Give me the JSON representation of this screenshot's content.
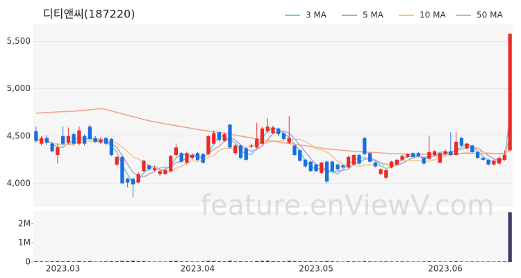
{
  "watermark": "feature.enViewV.com",
  "chart_data": [
    {
      "type": "candlestick",
      "title": "디티앤씨(187220)",
      "up_color": "#ec2a2a",
      "down_color": "#1a6fe0",
      "grid": true,
      "legend": "top-right",
      "open": [
        4550,
        4420,
        4480,
        4420,
        4300,
        4500,
        4430,
        4520,
        4420,
        4500,
        4600,
        4480,
        4430,
        4480,
        4470,
        4200,
        4280,
        4050,
        4050,
        4010,
        4130,
        4190,
        4140,
        4100,
        4100,
        4130,
        4300,
        4320,
        4220,
        4270,
        4320,
        4310,
        4310,
        4420,
        4540,
        4450,
        4620,
        4320,
        4400,
        4370,
        4390,
        4380,
        4420,
        4550,
        4530,
        4580,
        4530,
        4430,
        4400,
        4350,
        4250,
        4230,
        4200,
        4110,
        4230,
        4230,
        4200,
        4190,
        4170,
        4200,
        4300,
        4480,
        4320,
        4220,
        4100,
        4060,
        4170,
        4200,
        4250,
        4280,
        4320,
        4320,
        4270,
        4260,
        4300,
        4220,
        4310,
        4340,
        4300,
        4480,
        4370,
        4400,
        4330,
        4270,
        4250,
        4200,
        4210,
        4250,
        4350
      ],
      "high": [
        4600,
        4500,
        4510,
        4440,
        4420,
        4600,
        4590,
        4540,
        4600,
        4520,
        4620,
        4500,
        4490,
        4490,
        4480,
        4290,
        4300,
        4060,
        4060,
        4120,
        4250,
        4200,
        4180,
        4150,
        4160,
        4300,
        4420,
        4330,
        4330,
        4320,
        4330,
        4320,
        4510,
        4560,
        4550,
        4540,
        4630,
        4420,
        4410,
        4380,
        4420,
        4640,
        4600,
        4690,
        4610,
        4590,
        4540,
        4710,
        4410,
        4360,
        4260,
        4240,
        4210,
        4230,
        4240,
        4240,
        4210,
        4200,
        4290,
        4310,
        4310,
        4490,
        4330,
        4230,
        4160,
        4150,
        4240,
        4260,
        4300,
        4320,
        4330,
        4330,
        4280,
        4500,
        4350,
        4330,
        4360,
        4540,
        4540,
        4490,
        4430,
        4410,
        4340,
        4280,
        4260,
        4250,
        4280,
        4350,
        5580
      ],
      "low": [
        4430,
        4400,
        4410,
        4330,
        4210,
        4400,
        4410,
        4400,
        4400,
        4400,
        4450,
        4430,
        4420,
        4400,
        4290,
        4180,
        4000,
        3960,
        3850,
        4000,
        4120,
        4130,
        4130,
        4080,
        4090,
        4120,
        4280,
        4220,
        4200,
        4250,
        4240,
        4210,
        4300,
        4410,
        4440,
        4440,
        4370,
        4300,
        4260,
        4240,
        4370,
        4370,
        4410,
        4540,
        4520,
        4500,
        4460,
        4420,
        4290,
        4230,
        4170,
        4120,
        4120,
        4100,
        4000,
        4120,
        4140,
        4160,
        4160,
        4190,
        4200,
        4300,
        4220,
        4170,
        4090,
        4050,
        4160,
        4190,
        4240,
        4270,
        4270,
        4280,
        4200,
        4250,
        4290,
        4210,
        4300,
        4290,
        4290,
        4390,
        4360,
        4320,
        4260,
        4240,
        4190,
        4190,
        4200,
        4240,
        4340
      ],
      "close": [
        4450,
        4480,
        4430,
        4340,
        4380,
        4420,
        4500,
        4420,
        4560,
        4420,
        4470,
        4440,
        4460,
        4420,
        4300,
        4280,
        4000,
        4010,
        3990,
        4100,
        4240,
        4150,
        4160,
        4130,
        4140,
        4290,
        4380,
        4230,
        4320,
        4300,
        4250,
        4220,
        4500,
        4530,
        4460,
        4520,
        4380,
        4400,
        4270,
        4250,
        4400,
        4470,
        4580,
        4600,
        4590,
        4520,
        4470,
        4480,
        4300,
        4240,
        4180,
        4130,
        4130,
        4220,
        4020,
        4130,
        4150,
        4170,
        4280,
        4300,
        4210,
        4310,
        4230,
        4180,
        4150,
        4140,
        4230,
        4250,
        4290,
        4310,
        4280,
        4290,
        4210,
        4330,
        4340,
        4320,
        4340,
        4300,
        4440,
        4400,
        4420,
        4330,
        4270,
        4250,
        4200,
        4240,
        4270,
        4300,
        5580
      ],
      "series": [
        {
          "name": "3 MA",
          "color": "#6fd0d4",
          "values": [
            4450,
            4465,
            4453,
            4417,
            4383,
            4380,
            4433,
            4447,
            4493,
            4467,
            4483,
            4443,
            4457,
            4440,
            4393,
            4333,
            4193,
            4097,
            4000,
            4033,
            4110,
            4163,
            4183,
            4147,
            4143,
            4187,
            4270,
            4300,
            4310,
            4283,
            4290,
            4257,
            4323,
            4417,
            4497,
            4503,
            4453,
            4433,
            4350,
            4307,
            4307,
            4373,
            4483,
            4550,
            4590,
            4570,
            4527,
            4490,
            4417,
            4340,
            4240,
            4183,
            4147,
            4160,
            4123,
            4123,
            4100,
            4150,
            4200,
            4250,
            4263,
            4273,
            4250,
            4240,
            4187,
            4157,
            4173,
            4207,
            4257,
            4283,
            4293,
            4293,
            4260,
            4277,
            4293,
            4330,
            4333,
            4320,
            4360,
            4380,
            4420,
            4383,
            4340,
            4283,
            4240,
            4230,
            4237,
            4270,
            4717
          ]
        },
        {
          "name": "5 MA",
          "color": "#b9a3d8",
          "values": [
            4450,
            4465,
            4453,
            4425,
            4416,
            4410,
            4414,
            4412,
            4456,
            4464,
            4474,
            4462,
            4470,
            4442,
            4418,
            4380,
            4292,
            4202,
            4116,
            4076,
            4068,
            4098,
            4128,
            4164,
            4172,
            4174,
            4220,
            4234,
            4272,
            4304,
            4296,
            4264,
            4318,
            4360,
            4392,
            4446,
            4478,
            4458,
            4406,
            4364,
            4340,
            4358,
            4394,
            4460,
            4528,
            4552,
            4552,
            4532,
            4472,
            4402,
            4334,
            4264,
            4196,
            4180,
            4136,
            4126,
            4130,
            4138,
            4150,
            4206,
            4222,
            4254,
            4266,
            4246,
            4216,
            4202,
            4188,
            4190,
            4212,
            4244,
            4272,
            4284,
            4276,
            4282,
            4290,
            4298,
            4308,
            4326,
            4348,
            4360,
            4380,
            4378,
            4372,
            4334,
            4294,
            4258,
            4246,
            4252,
            4518
          ]
        },
        {
          "name": "10 MA",
          "color": "#f6c58a",
          "values": [
            4450,
            4465,
            4453,
            4425,
            4416,
            4413,
            4419,
            4416,
            4436,
            4437,
            4444,
            4438,
            4441,
            4449,
            4437,
            4427,
            4383,
            4336,
            4279,
            4259,
            4224,
            4195,
            4160,
            4140,
            4124,
            4121,
            4159,
            4181,
            4218,
            4238,
            4235,
            4242,
            4276,
            4297,
            4348,
            4371,
            4371,
            4361,
            4362,
            4378,
            4393,
            4418,
            4426,
            4433,
            4446,
            4446,
            4455,
            4463,
            4466,
            4465,
            4443,
            4408,
            4364,
            4356,
            4332,
            4289,
            4232,
            4201,
            4188,
            4194,
            4179,
            4192,
            4198,
            4192,
            4183,
            4204,
            4205,
            4222,
            4239,
            4245,
            4237,
            4243,
            4233,
            4236,
            4251,
            4271,
            4290,
            4301,
            4315,
            4319,
            4326,
            4338,
            4340,
            4330,
            4321,
            4317,
            4313,
            4312,
            4449
          ]
        },
        {
          "name": "50 MA",
          "color": "#f3a48e",
          "values": [
            4740,
            4745,
            4750,
            4752,
            4755,
            4758,
            4760,
            4763,
            4767,
            4772,
            4778,
            4785,
            4790,
            4780,
            4765,
            4750,
            4735,
            4720,
            4705,
            4690,
            4675,
            4662,
            4650,
            4640,
            4630,
            4620,
            4610,
            4600,
            4590,
            4580,
            4570,
            4562,
            4554,
            4546,
            4538,
            4530,
            4520,
            4510,
            4500,
            4490,
            4480,
            4470,
            4462,
            4454,
            4446,
            4438,
            4430,
            4422,
            4414,
            4406,
            4398,
            4390,
            4382,
            4374,
            4366,
            4360,
            4354,
            4348,
            4344,
            4340,
            4336,
            4332,
            4328,
            4325,
            4322,
            4319,
            4316,
            4314,
            4312,
            4310,
            4309,
            4308,
            4308,
            4308,
            4309,
            4310,
            4311,
            4312,
            4314,
            4316,
            4317,
            4318,
            4318,
            4317,
            4316,
            4315,
            4315,
            4318,
            4345
          ]
        }
      ],
      "ylim": [
        3750,
        5680
      ],
      "yticks": [
        {
          "value": 4000,
          "label": "4,000"
        },
        {
          "value": 4500,
          "label": "4,500"
        },
        {
          "value": 5000,
          "label": "5,000"
        },
        {
          "value": 5500,
          "label": "5,500"
        }
      ]
    },
    {
      "type": "bar",
      "color": "#3b3d63",
      "categories": [
        null,
        null,
        null,
        null,
        null,
        "2023.03",
        null,
        null,
        null,
        null,
        null,
        null,
        null,
        null,
        null,
        null,
        null,
        null,
        null,
        null,
        null,
        null,
        null,
        null,
        null,
        null,
        null,
        null,
        null,
        null,
        "2023.04",
        null,
        null,
        null,
        null,
        null,
        null,
        null,
        null,
        null,
        null,
        null,
        null,
        null,
        null,
        null,
        null,
        null,
        null,
        null,
        null,
        null,
        "2023.05",
        null,
        null,
        null,
        null,
        null,
        null,
        null,
        null,
        null,
        null,
        null,
        null,
        null,
        null,
        null,
        null,
        null,
        null,
        null,
        null,
        null,
        null,
        null,
        "2023.06",
        null,
        null,
        null,
        null,
        null,
        null,
        null,
        null,
        null,
        null,
        null,
        null
      ],
      "values": [
        40000,
        30000,
        25000,
        35000,
        45000,
        30000,
        40000,
        25000,
        50000,
        30000,
        45000,
        20000,
        25000,
        30000,
        40000,
        35000,
        60000,
        50000,
        70000,
        40000,
        45000,
        25000,
        20000,
        25000,
        20000,
        45000,
        55000,
        30000,
        30000,
        25000,
        25000,
        30000,
        60000,
        55000,
        35000,
        30000,
        70000,
        30000,
        35000,
        30000,
        25000,
        50000,
        60000,
        65000,
        40000,
        30000,
        30000,
        60000,
        40000,
        35000,
        30000,
        35000,
        25000,
        30000,
        50000,
        35000,
        25000,
        20000,
        35000,
        30000,
        25000,
        45000,
        30000,
        25000,
        25000,
        30000,
        25000,
        25000,
        30000,
        25000,
        20000,
        20000,
        25000,
        35000,
        25000,
        25000,
        20000,
        30000,
        35000,
        25000,
        20000,
        25000,
        25000,
        20000,
        25000,
        20000,
        25000,
        30000,
        2600000
      ],
      "ylim": [
        0,
        2650000
      ],
      "yticks": [
        0,
        {
          "value": 1000000,
          "label": "1M"
        },
        {
          "value": 2000000,
          "label": "2M"
        }
      ]
    }
  ]
}
